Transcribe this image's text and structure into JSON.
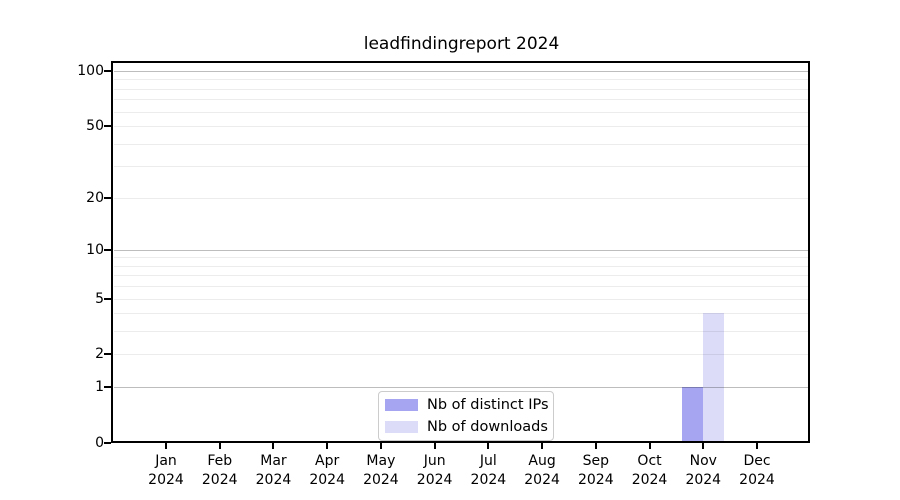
{
  "chart_data": {
    "type": "bar",
    "title": "leadfindingreport 2024",
    "categories": [
      "Jan",
      "Feb",
      "Mar",
      "Apr",
      "May",
      "Jun",
      "Jul",
      "Aug",
      "Sep",
      "Oct",
      "Nov",
      "Dec"
    ],
    "x_year_label": "2024",
    "series": [
      {
        "name": "Nb of distinct IPs",
        "color": "#a5a5f1",
        "values": [
          0,
          0,
          0,
          0,
          0,
          0,
          0,
          0,
          0,
          0,
          1,
          0
        ]
      },
      {
        "name": "Nb of downloads",
        "color": "#dcdcf8",
        "values": [
          0,
          0,
          0,
          0,
          0,
          0,
          0,
          0,
          0,
          0,
          4,
          0
        ]
      }
    ],
    "yscale": "log1p",
    "ylim": [
      0,
      112
    ],
    "yticks": [
      0,
      1,
      2,
      5,
      10,
      20,
      50,
      100
    ],
    "major_gridlines": [
      1,
      10,
      100
    ],
    "minor_gridlines": [
      2,
      3,
      4,
      5,
      6,
      7,
      8,
      9,
      20,
      30,
      40,
      50,
      60,
      70,
      80,
      90
    ],
    "grid": true,
    "legend_position": "lower center"
  },
  "colors": {
    "axis": "#000000",
    "background": "#ffffff",
    "major_grid": "#bfbfbf",
    "minor_grid": "#ececec"
  }
}
